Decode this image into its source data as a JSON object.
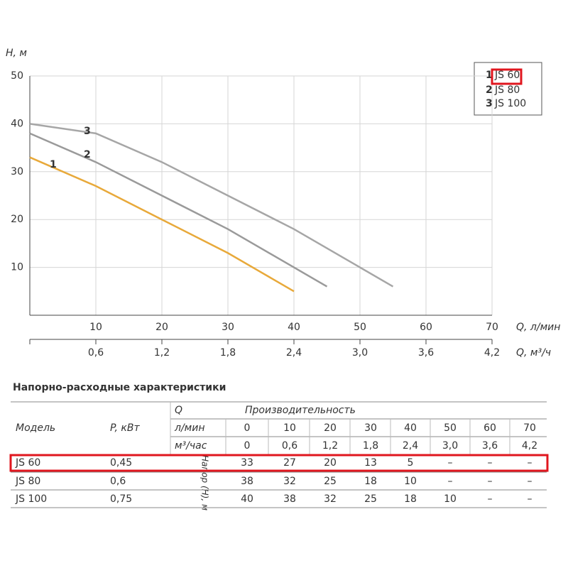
{
  "chart_data": {
    "type": "line",
    "y_label": "H, м",
    "x_label": "Q, л/мин",
    "x2_label": "Q, м³/ч",
    "xlim": [
      0,
      70
    ],
    "xticks": [
      10,
      20,
      30,
      40,
      50,
      60,
      70
    ],
    "x2lim": [
      0,
      4.2
    ],
    "x2ticks": [
      {
        "value": 0.6,
        "label": "0,6"
      },
      {
        "value": 1.2,
        "label": "1,2"
      },
      {
        "value": 1.8,
        "label": "1,8"
      },
      {
        "value": 2.4,
        "label": "2,4"
      },
      {
        "value": 3.0,
        "label": "3,0"
      },
      {
        "value": 3.6,
        "label": "3,6"
      },
      {
        "value": 4.2,
        "label": "4,2"
      }
    ],
    "ylim": [
      0,
      50
    ],
    "yticks": [
      10,
      20,
      30,
      40,
      50
    ],
    "grid": true,
    "series": [
      {
        "name": "JS 60",
        "label": "1",
        "color": "#e8a93a",
        "x": [
          0,
          10,
          20,
          30,
          40
        ],
        "values": [
          33,
          27,
          20,
          13,
          5
        ]
      },
      {
        "name": "JS 80",
        "label": "2",
        "color": "#9a9a9a",
        "x": [
          0,
          10,
          20,
          30,
          40,
          45
        ],
        "values": [
          38,
          32,
          25,
          18,
          10,
          6
        ]
      },
      {
        "name": "JS 100",
        "label": "3",
        "color": "#a6a6a6",
        "x": [
          0,
          10,
          20,
          30,
          40,
          50,
          55
        ],
        "values": [
          40,
          38,
          32,
          25,
          18,
          10,
          6
        ]
      }
    ]
  },
  "table": {
    "title": "Напорно-расходные характеристики",
    "model_header": "Модель",
    "power_header": "P, кВт",
    "q_header": "Q",
    "flow_header": "Производительность",
    "head_header": "Напор (H), м",
    "lpm_label": "л/мин",
    "lpm": [
      "0",
      "10",
      "20",
      "30",
      "40",
      "50",
      "60",
      "70"
    ],
    "m3h_label": "м³/час",
    "m3h": [
      "0",
      "0,6",
      "1,2",
      "1,8",
      "2,4",
      "3,0",
      "3,6",
      "4,2"
    ],
    "rows": [
      [
        "JS 60",
        "0,45",
        "33",
        "27",
        "20",
        "13",
        "5",
        "–",
        "–",
        "–"
      ],
      [
        "JS 80",
        "0,6",
        "38",
        "32",
        "25",
        "18",
        "10",
        "–",
        "–",
        "–"
      ],
      [
        "JS 100",
        "0,75",
        "40",
        "38",
        "32",
        "25",
        "18",
        "10",
        "–",
        "–"
      ]
    ]
  }
}
